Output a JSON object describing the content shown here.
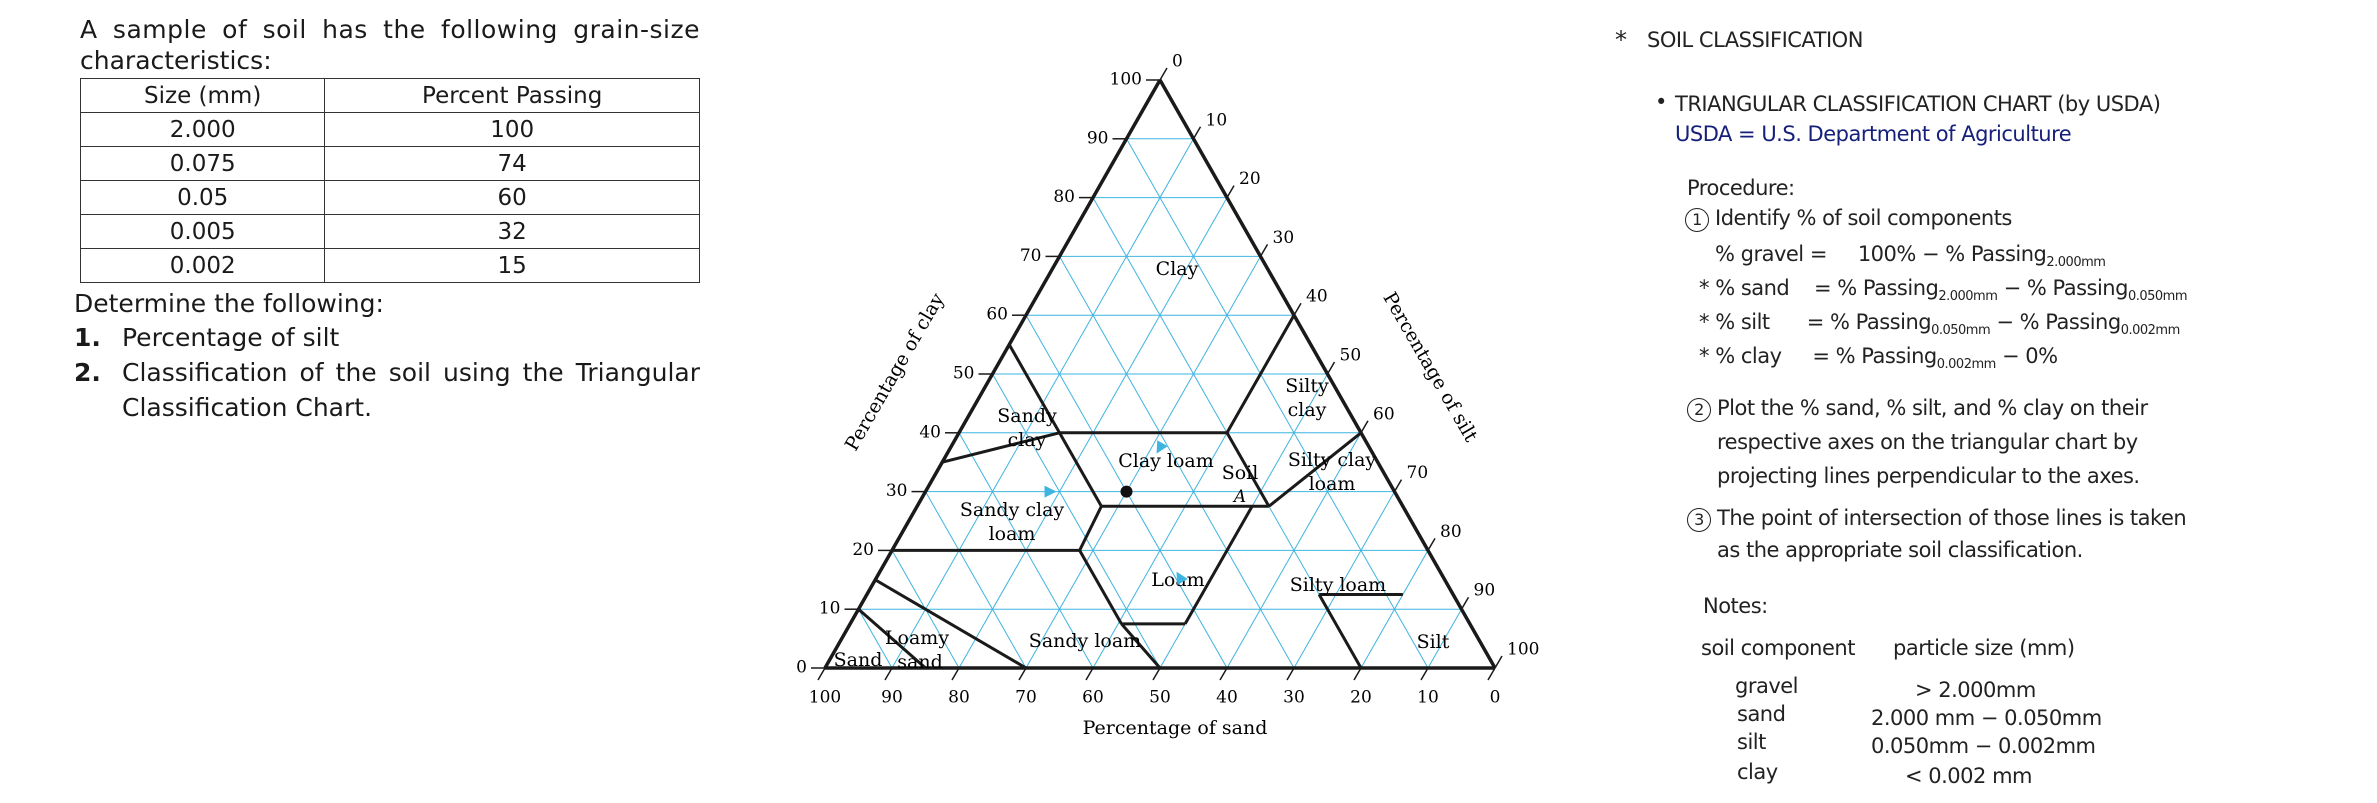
{
  "problem": {
    "intro": "A sample of soil has the following grain-size",
    "intro2": "characteristics:",
    "table": {
      "headers": [
        "Size (mm)",
        "Percent Passing"
      ],
      "rows": [
        [
          "2.000",
          "100"
        ],
        [
          "0.075",
          "74"
        ],
        [
          "0.05",
          "60"
        ],
        [
          "0.005",
          "32"
        ],
        [
          "0.002",
          "15"
        ]
      ]
    },
    "determine": "Determine the following:",
    "items": [
      {
        "num": "1.",
        "text": "Percentage of silt"
      },
      {
        "num": "2.",
        "text": "Classification of the soil using the Triangular Classification Chart."
      }
    ]
  },
  "chart": {
    "clay_axis_label": "Percentage of clay",
    "silt_axis_label": "Percentage of silt",
    "sand_axis_label": "Percentage of sand",
    "clay_ticks": [
      "0",
      "10",
      "20",
      "30",
      "40",
      "50",
      "60",
      "70",
      "80",
      "90",
      "100"
    ],
    "silt_ticks": [
      "0",
      "10",
      "20",
      "30",
      "40",
      "50",
      "60",
      "70",
      "80",
      "90",
      "100"
    ],
    "sand_ticks": [
      "100",
      "90",
      "80",
      "70",
      "60",
      "50",
      "40",
      "30",
      "20",
      "10",
      "0"
    ],
    "regions": {
      "clay": "Clay",
      "silty_clay_1": "Silty",
      "silty_clay_2": "clay",
      "sandy_clay_1": "Sandy",
      "sandy_clay_2": "clay",
      "clay_loam": "Clay loam",
      "silty_clay_loam_1": "Silty clay",
      "silty_clay_loam_2": "loam",
      "sandy_clay_loam_1": "Sandy clay",
      "sandy_clay_loam_2": "loam",
      "loam": "Loam",
      "silty_loam": "Silty loam",
      "sandy_loam": "Sandy loam",
      "loamy_sand_1": "Loamy",
      "loamy_sand_2": "sand",
      "sand": "Sand",
      "silt": "Silt"
    },
    "soil_label": "Soil",
    "soil_point_label": "A",
    "soil_point": {
      "sand": 40,
      "silt": 30,
      "clay": 30
    },
    "grid_color": "#3fb4e0",
    "line_color": "#1a1a1a"
  },
  "notes": {
    "heading_star": "*",
    "heading": "SOIL CLASSIFICATION",
    "bullet": "•",
    "subheading": "TRIANGULAR CLASSIFICATION CHART (by USDA)",
    "usda_def": "USDA = U.S. Department of Agriculture",
    "procedure_label": "Procedure:",
    "step1_num": "1",
    "step1": "Identify % of soil components",
    "f_gravel": "% gravel =",
    "f_gravel_rhs_a": "100% − % Passing",
    "f_gravel_rhs_sub": "2.000mm",
    "f_sand_star": "*",
    "f_sand": "% sand",
    "f_sand_rhs_a": "= % Passing",
    "f_sand_rhs_sub1": "2.000mm",
    "f_sand_rhs_b": "− % Passing",
    "f_sand_rhs_sub2": "0.050mm",
    "f_silt_star": "*",
    "f_silt": "% silt",
    "f_silt_rhs_a": "= % Passing",
    "f_silt_rhs_sub1": "0.050mm",
    "f_silt_rhs_b": "− % Passing",
    "f_silt_rhs_sub2": "0.002mm",
    "f_clay_star": "*",
    "f_clay": "% clay",
    "f_clay_rhs_a": "= % Passing",
    "f_clay_rhs_sub1": "0.002mm",
    "f_clay_rhs_b": "− 0%",
    "step2_num": "2",
    "step2_l1": "Plot the % sand, % silt, and % clay on their",
    "step2_l2": "respective axes on the triangular chart by",
    "step2_l3": "projecting lines perpendicular to the axes.",
    "step3_num": "3",
    "step3_l1": "The point of intersection of those lines is taken",
    "step3_l2": "as the appropriate soil classification.",
    "notes_label": "Notes:",
    "col1": "soil component",
    "col2": "particle size (mm)",
    "rows": [
      {
        "comp": "gravel",
        "size": "> 2.000mm"
      },
      {
        "comp": "sand",
        "size": "2.000 mm − 0.050mm"
      },
      {
        "comp": "silt",
        "size": "0.050mm − 0.002mm"
      },
      {
        "comp": "clay",
        "size": "< 0.002 mm"
      }
    ]
  }
}
